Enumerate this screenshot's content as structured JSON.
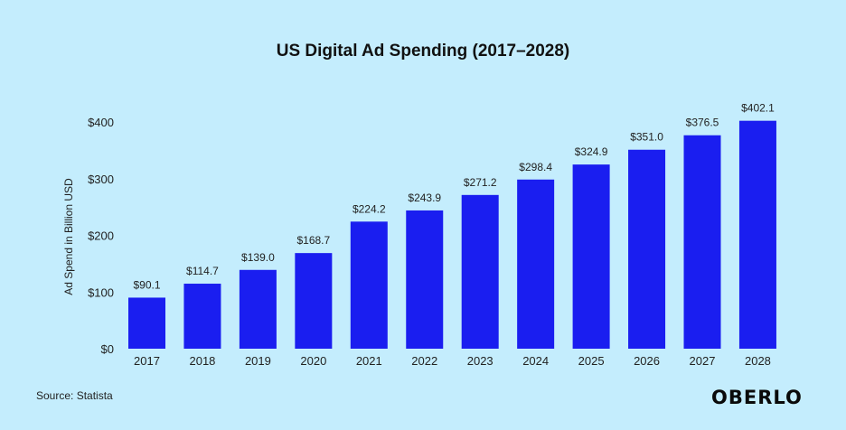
{
  "chart_data": {
    "type": "bar",
    "title": "US Digital Ad Spending (2017–2028)",
    "xlabel": "",
    "ylabel": "Ad Spend in Billion USD",
    "categories": [
      "2017",
      "2018",
      "2019",
      "2020",
      "2021",
      "2022",
      "2023",
      "2024",
      "2025",
      "2026",
      "2027",
      "2028"
    ],
    "values": [
      90.1,
      114.7,
      139.0,
      168.7,
      224.2,
      243.9,
      271.2,
      298.4,
      324.9,
      351.0,
      376.5,
      402.1
    ],
    "data_labels": [
      "$90.1",
      "$114.7",
      "$139.0",
      "$168.7",
      "$224.2",
      "$243.9",
      "$271.2",
      "$298.4",
      "$324.9",
      "$351.0",
      "$376.5",
      "$402.1"
    ],
    "yticks": [
      0,
      100,
      200,
      300,
      400
    ],
    "ytick_labels": [
      "$0",
      "$100",
      "$200",
      "$300",
      "$400"
    ],
    "ylim": [
      0,
      400
    ],
    "grid": false,
    "legend": "none",
    "bar_color": "#1a1ef0",
    "background_color": "#c4edfd"
  },
  "footer": {
    "source": "Source: Statista",
    "logo": "OBERLO"
  }
}
